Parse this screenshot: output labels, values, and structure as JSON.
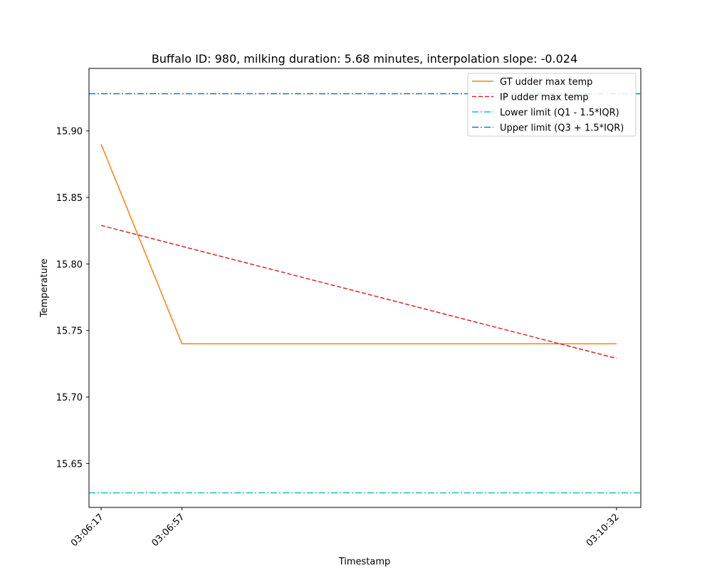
{
  "chart_data": {
    "type": "line",
    "title": "Buffalo ID: 980, milking duration: 5.68 minutes, interpolation slope: -0.024",
    "xlabel": "Timestamp",
    "ylabel": "Temperature",
    "x_ticks": [
      "03:06:17",
      "03:06:57",
      "03:10:32"
    ],
    "x_tick_seconds": [
      0,
      40,
      255
    ],
    "xlim": [
      -6,
      267
    ],
    "ylim": [
      15.617,
      15.947
    ],
    "y_ticks": [
      "15.65",
      "15.70",
      "15.75",
      "15.80",
      "15.85",
      "15.90"
    ],
    "series": [
      {
        "name": "GT udder max temp",
        "color": "#ff7f0e",
        "style": "solid",
        "x": [
          "03:06:17",
          "03:06:57",
          "03:10:32"
        ],
        "y": [
          15.89,
          15.74,
          15.74
        ]
      },
      {
        "name": "IP udder max temp",
        "color": "#d62728",
        "style": "dashed",
        "x": [
          "03:06:17",
          "03:10:32"
        ],
        "y": [
          15.829,
          15.729
        ]
      },
      {
        "name": "Lower limit (Q1 - 1.5*IQR)",
        "color": "#17becf",
        "style": "dashdot",
        "y_const": 15.628
      },
      {
        "name": "Upper limit (Q3 + 1.5*IQR)",
        "color": "#1f77b4",
        "style": "dashdot",
        "y_const": 15.928
      }
    ],
    "legend_position": "upper right",
    "grid": false
  }
}
